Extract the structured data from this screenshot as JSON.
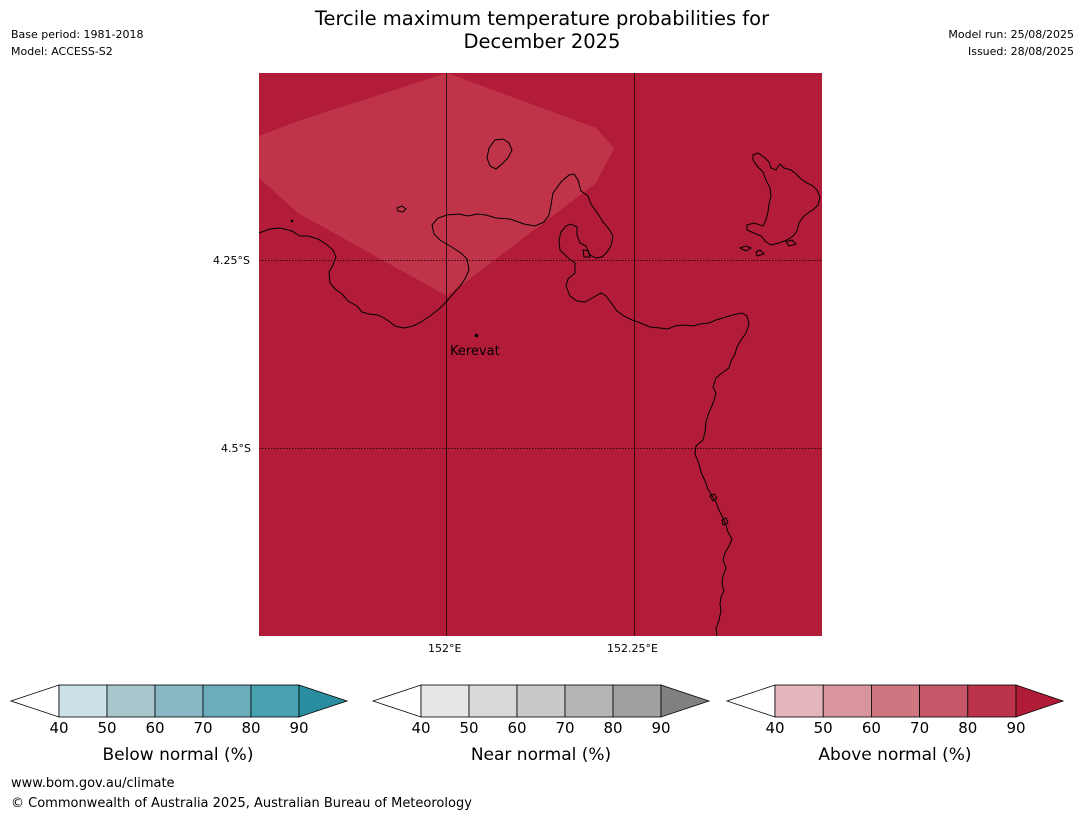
{
  "header": {
    "title_line1": "Tercile maximum temperature probabilities for",
    "title_line2": "December 2025",
    "base_period": "Base period: 1981-2018",
    "model": "Model: ACCESS-S2",
    "model_run": "Model run: 25/08/2025",
    "issued": "Issued: 28/08/2025"
  },
  "map": {
    "lat_labels": [
      "4.25°S",
      "4.5°S"
    ],
    "lon_labels": [
      "152°E",
      "152.25°E"
    ],
    "places": [
      {
        "name": "Kerevat"
      }
    ],
    "colors": {
      "dominant": "#b31c38",
      "region_light": "#bf3449",
      "coastline": "#000000"
    }
  },
  "legends": [
    {
      "label": "Below normal (%)",
      "ticks": [
        "40",
        "50",
        "60",
        "70",
        "80",
        "90"
      ],
      "colors": [
        "#ffffff",
        "#cbe2e8",
        "#a8c7cd",
        "#89b7c3",
        "#6badbb",
        "#47a1b0",
        "#2b8ea0"
      ]
    },
    {
      "label": "Near normal (%)",
      "ticks": [
        "40",
        "50",
        "60",
        "70",
        "80",
        "90"
      ],
      "colors": [
        "#ffffff",
        "#e6e6e6",
        "#d9d9d9",
        "#c9c9c9",
        "#b5b5b5",
        "#a0a0a0",
        "#808080"
      ]
    },
    {
      "label": "Above normal (%)",
      "ticks": [
        "40",
        "50",
        "60",
        "70",
        "80",
        "90"
      ],
      "colors": [
        "#ffffff",
        "#e2b6bc",
        "#d8959d",
        "#ce7780",
        "#c45868",
        "#bc3449",
        "#b01c38"
      ]
    }
  ],
  "footer": {
    "url": "www.bom.gov.au/climate",
    "copyright": "© Commonwealth of Australia 2025, Australian Bureau of Meteorology"
  }
}
